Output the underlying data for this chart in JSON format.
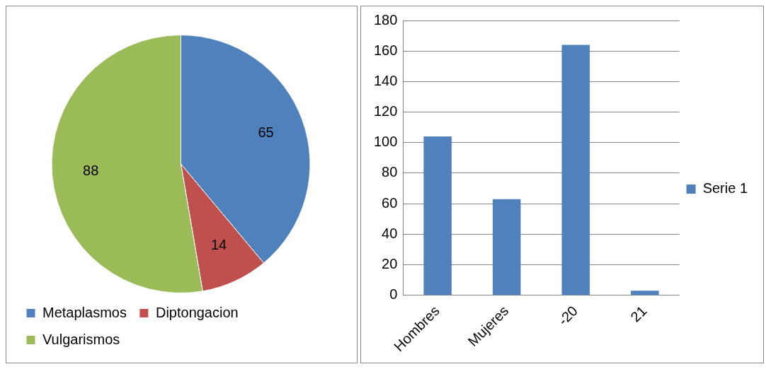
{
  "chart_data": [
    {
      "type": "pie",
      "categories": [
        "Metaplasmos",
        "Diptongacion",
        "Vulgarismos"
      ],
      "values": [
        65,
        14,
        88
      ],
      "colors": [
        "#4f81bd",
        "#c0504d",
        "#9bbb59"
      ],
      "data_labels": true,
      "legend": "bottom"
    },
    {
      "type": "bar",
      "categories": [
        "Hombres",
        "Mujeres",
        "-20",
        "21"
      ],
      "series": [
        {
          "name": "Serie 1",
          "color": "#4f81bd",
          "values": [
            104,
            63,
            164,
            3
          ]
        }
      ],
      "ylim": [
        0,
        180
      ],
      "yticks": [
        0,
        20,
        40,
        60,
        80,
        100,
        120,
        140,
        160,
        180
      ],
      "grid": "y",
      "legend": "right"
    }
  ]
}
